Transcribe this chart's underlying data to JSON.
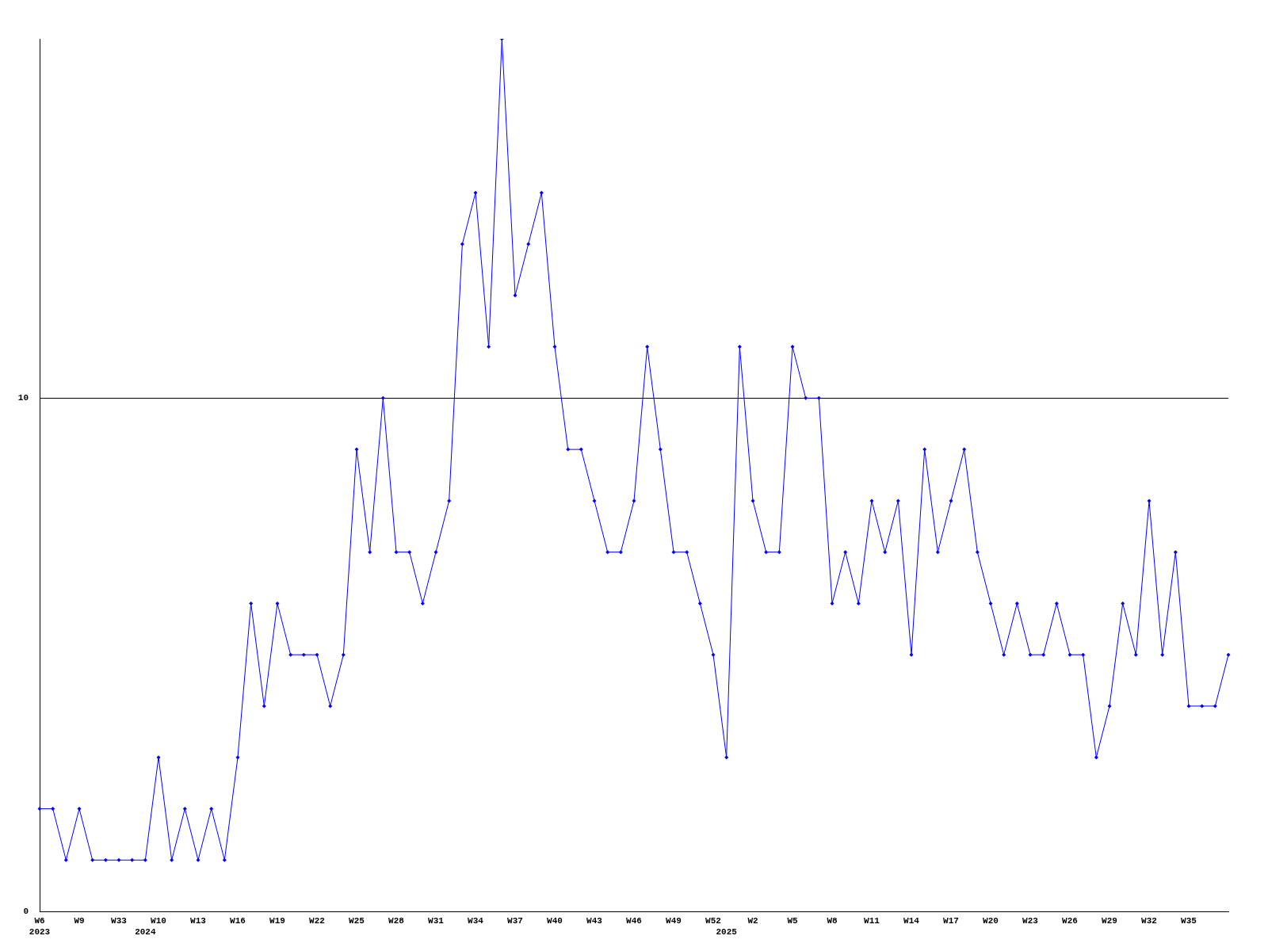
{
  "chart_data": {
    "type": "line",
    "categories": [
      "W6\n2023",
      null,
      null,
      "W9",
      null,
      null,
      "W33",
      null,
      "\n2024",
      "W10",
      null,
      null,
      "W13",
      null,
      null,
      "W16",
      null,
      null,
      "W19",
      null,
      null,
      "W22",
      null,
      null,
      "W25",
      null,
      null,
      "W28",
      null,
      null,
      "W31",
      null,
      null,
      "W34",
      null,
      null,
      "W37",
      null,
      null,
      "W40",
      null,
      null,
      "W43",
      null,
      null,
      "W46",
      null,
      null,
      "W49",
      null,
      null,
      "W52",
      "\n2025",
      null,
      "W2",
      null,
      null,
      "W5",
      null,
      null,
      "W8",
      null,
      null,
      "W11",
      null,
      null,
      "W14",
      null,
      null,
      "W17",
      null,
      null,
      "W20",
      null,
      null,
      "W23",
      null,
      null,
      "W26",
      null,
      null,
      "W29",
      null,
      null,
      "W32",
      null,
      null,
      "W35",
      null,
      null,
      null
    ],
    "series": [
      {
        "color": "#0000ff",
        "values": [
          2,
          2,
          1,
          2,
          1,
          1,
          1,
          1,
          1,
          3,
          1,
          2,
          1,
          2,
          1,
          3,
          6,
          4,
          6,
          5,
          5,
          5,
          4,
          5,
          9,
          7,
          10,
          7,
          7,
          6,
          7,
          8,
          13,
          14,
          11,
          17,
          12,
          13,
          14,
          11,
          9,
          9,
          8,
          7,
          7,
          8,
          11,
          9,
          7,
          7,
          6,
          5,
          3,
          11,
          8,
          7,
          7,
          11,
          10,
          10,
          6,
          7,
          6,
          8,
          7,
          8,
          5,
          9,
          7,
          8,
          9,
          7,
          6,
          5,
          6,
          5,
          5,
          6,
          5,
          5,
          3,
          4,
          6,
          5,
          8,
          5,
          7,
          4,
          4,
          4,
          5
        ]
      }
    ],
    "ylim": [
      0,
      17
    ],
    "yticks": [
      0,
      10
    ],
    "grid": "y",
    "legend": false,
    "marker": "diamond",
    "line_style": "solid"
  }
}
